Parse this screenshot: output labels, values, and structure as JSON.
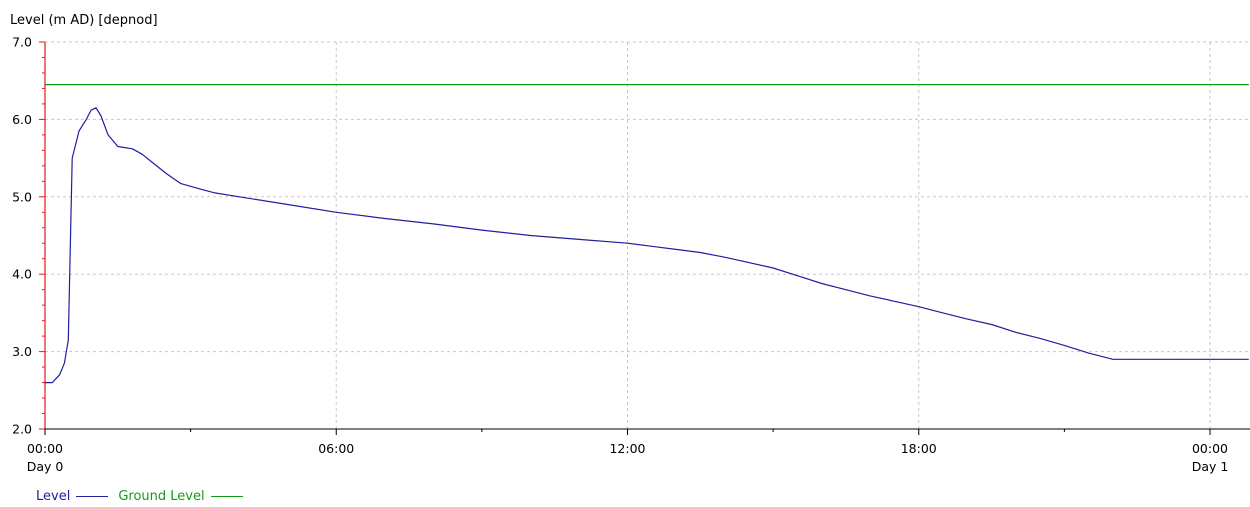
{
  "chart_data": {
    "type": "line",
    "ylabel": "Level (m AD) [depnod]",
    "ylim": [
      2.0,
      7.0
    ],
    "y_ticks": [
      "2.0",
      "3.0",
      "4.0",
      "5.0",
      "6.0",
      "7.0"
    ],
    "xlim_hours": [
      0,
      24.8
    ],
    "x_ticks": [
      {
        "hours": 0,
        "label": "00:00",
        "day": "Day 0"
      },
      {
        "hours": 6,
        "label": "06:00",
        "day": ""
      },
      {
        "hours": 12,
        "label": "12:00",
        "day": ""
      },
      {
        "hours": 18,
        "label": "18:00",
        "day": ""
      },
      {
        "hours": 24,
        "label": "00:00",
        "day": "Day 1"
      }
    ],
    "grid": true,
    "legend_position": "bottom-left",
    "series": [
      {
        "name": "Level",
        "color": "#1f1fa0",
        "points": [
          [
            0.0,
            2.6
          ],
          [
            0.15,
            2.6
          ],
          [
            0.3,
            2.7
          ],
          [
            0.4,
            2.85
          ],
          [
            0.48,
            3.15
          ],
          [
            0.56,
            5.5
          ],
          [
            0.7,
            5.85
          ],
          [
            0.85,
            6.0
          ],
          [
            0.95,
            6.12
          ],
          [
            1.05,
            6.15
          ],
          [
            1.15,
            6.05
          ],
          [
            1.3,
            5.8
          ],
          [
            1.5,
            5.65
          ],
          [
            1.8,
            5.62
          ],
          [
            2.0,
            5.55
          ],
          [
            2.2,
            5.45
          ],
          [
            2.5,
            5.3
          ],
          [
            2.8,
            5.17
          ],
          [
            3.2,
            5.1
          ],
          [
            3.5,
            5.05
          ],
          [
            4.0,
            5.0
          ],
          [
            5.0,
            4.9
          ],
          [
            6.0,
            4.8
          ],
          [
            7.0,
            4.72
          ],
          [
            8.0,
            4.65
          ],
          [
            9.0,
            4.57
          ],
          [
            10.0,
            4.5
          ],
          [
            11.0,
            4.45
          ],
          [
            12.0,
            4.4
          ],
          [
            12.5,
            4.36
          ],
          [
            13.0,
            4.32
          ],
          [
            13.5,
            4.28
          ],
          [
            14.0,
            4.22
          ],
          [
            14.5,
            4.15
          ],
          [
            15.0,
            4.08
          ],
          [
            15.5,
            3.98
          ],
          [
            16.0,
            3.88
          ],
          [
            16.5,
            3.8
          ],
          [
            17.0,
            3.72
          ],
          [
            17.5,
            3.65
          ],
          [
            18.0,
            3.58
          ],
          [
            18.5,
            3.5
          ],
          [
            19.0,
            3.42
          ],
          [
            19.5,
            3.35
          ],
          [
            20.0,
            3.25
          ],
          [
            20.5,
            3.17
          ],
          [
            21.0,
            3.08
          ],
          [
            21.5,
            2.98
          ],
          [
            22.0,
            2.9
          ],
          [
            23.0,
            2.9
          ],
          [
            24.0,
            2.9
          ],
          [
            24.8,
            2.9
          ]
        ]
      },
      {
        "name": "Ground Level",
        "color": "#149c14",
        "points": [
          [
            0.0,
            6.45
          ],
          [
            24.8,
            6.45
          ]
        ]
      }
    ]
  }
}
